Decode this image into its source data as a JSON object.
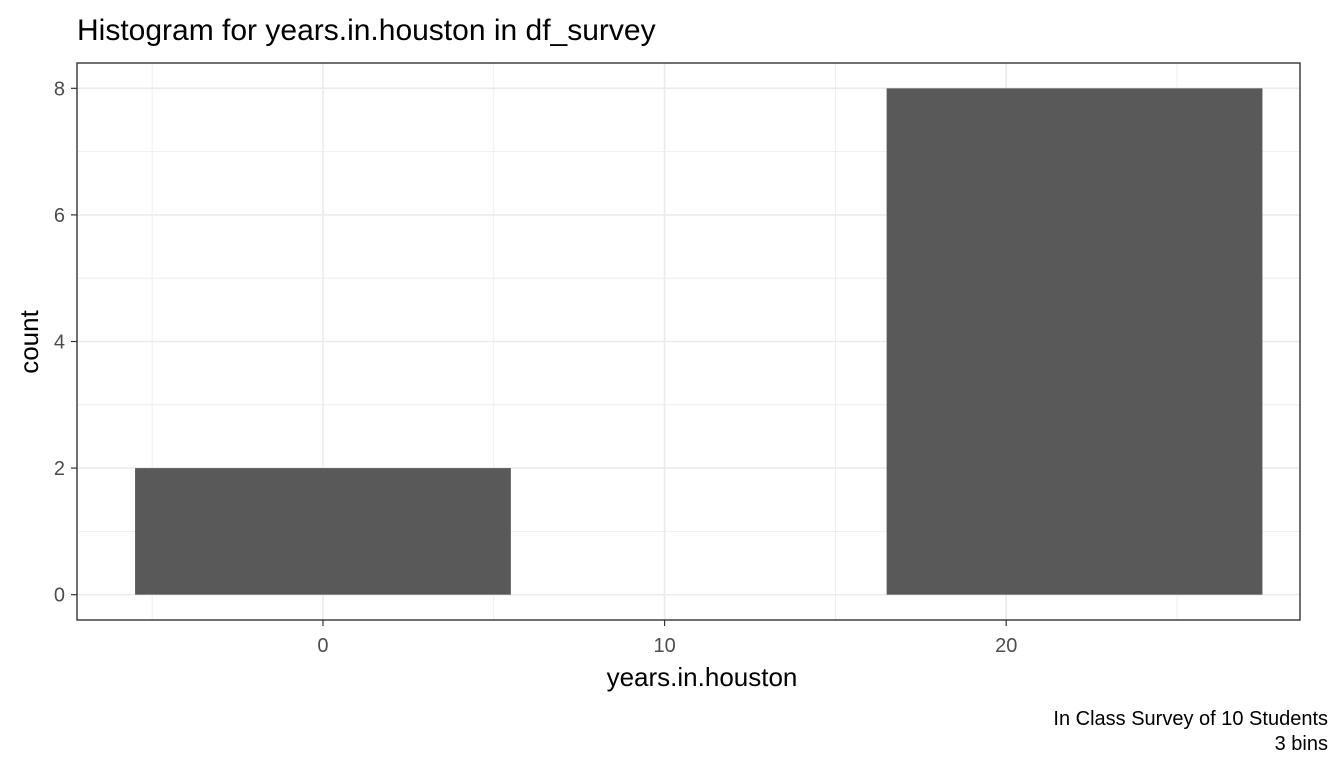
{
  "chart_data": {
    "type": "bar",
    "title": "Histogram for years.in.houston in df_survey",
    "xlabel": "years.in.houston",
    "ylabel": "count",
    "caption": [
      "In Class Survey of 10 Students",
      "3 bins"
    ],
    "bins": [
      {
        "x_min": -5.5,
        "x_max": 5.5,
        "count": 2
      },
      {
        "x_min": 5.5,
        "x_max": 16.5,
        "count": 0
      },
      {
        "x_min": 16.5,
        "x_max": 27.5,
        "count": 8
      }
    ],
    "xlim": [
      -7.2,
      28.6
    ],
    "ylim": [
      -0.4,
      8.4
    ],
    "x_ticks": [
      0,
      10,
      20
    ],
    "x_tick_labels": [
      "0",
      "10",
      "20"
    ],
    "y_ticks": [
      0,
      2,
      4,
      6,
      8
    ],
    "y_tick_labels": [
      "0",
      "2",
      "4",
      "6",
      "8"
    ],
    "x_minor_ticks": [
      -5,
      5,
      15,
      25
    ],
    "y_minor_ticks": [
      1,
      3,
      5,
      7
    ],
    "grid": true,
    "bar_color": "#595959",
    "grid_color": "#ebebeb",
    "panel_border_color": "#333333"
  }
}
